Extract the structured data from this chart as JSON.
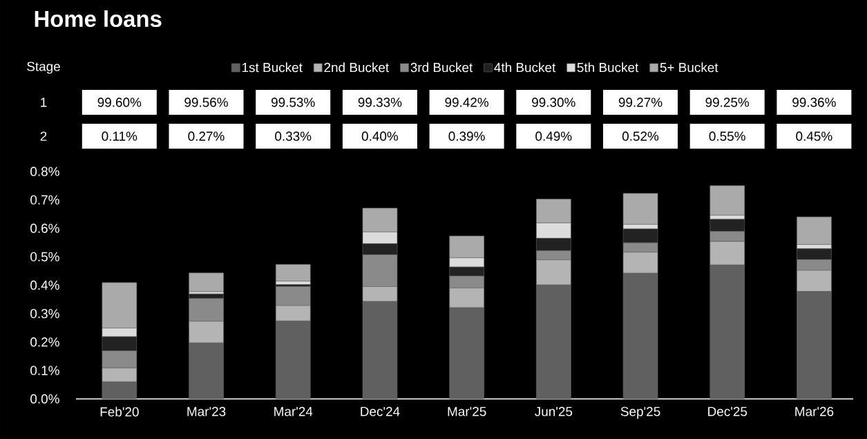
{
  "chart_data": {
    "type": "bar",
    "title": "Home loans",
    "stacked": true,
    "legend": "top",
    "categories": [
      "Feb'20",
      "Mar'23",
      "Mar'24",
      "Dec'24",
      "Mar'25",
      "Jun'25",
      "Sep'25",
      "Dec'25",
      "Mar'26"
    ],
    "series": [
      {
        "name": "1st Bucket",
        "color": "#606060",
        "values": [
          0.06,
          0.197,
          0.274,
          0.343,
          0.321,
          0.401,
          0.442,
          0.471,
          0.378
        ]
      },
      {
        "name": "2nd Bucket",
        "color": "#b4b4b4",
        "values": [
          0.049,
          0.076,
          0.054,
          0.052,
          0.069,
          0.088,
          0.074,
          0.083,
          0.074
        ]
      },
      {
        "name": "3rd Bucket",
        "color": "#8a8a8a",
        "values": [
          0.06,
          0.08,
          0.067,
          0.112,
          0.042,
          0.032,
          0.033,
          0.035,
          0.038
        ]
      },
      {
        "name": "4th Bucket",
        "color": "#222222",
        "values": [
          0.05,
          0.016,
          0.007,
          0.039,
          0.032,
          0.044,
          0.049,
          0.043,
          0.038
        ]
      },
      {
        "name": "5th Bucket",
        "color": "#dcdcdc",
        "values": [
          0.03,
          0.008,
          0.012,
          0.041,
          0.032,
          0.054,
          0.016,
          0.014,
          0.015
        ]
      },
      {
        "name": "5+ Bucket",
        "color": "#aaaaaa",
        "values": [
          0.16,
          0.066,
          0.059,
          0.084,
          0.077,
          0.084,
          0.109,
          0.104,
          0.097
        ]
      }
    ],
    "ylim": [
      0,
      0.8
    ],
    "yticks": [
      {
        "value": 0,
        "label": "0.0%"
      },
      {
        "value": 0.1,
        "label": "0.1%"
      },
      {
        "value": 0.2,
        "label": "0.2%"
      },
      {
        "value": 0.3,
        "label": "0.3%"
      },
      {
        "value": 0.4,
        "label": "0.4%"
      },
      {
        "value": 0.5,
        "label": "0.5%"
      },
      {
        "value": 0.6,
        "label": "0.6%"
      },
      {
        "value": 0.7,
        "label": "0.7%"
      },
      {
        "value": 0.8,
        "label": "0.8%"
      }
    ],
    "annotations": [
      "Stage",
      "1",
      "2",
      "99.60%",
      "99.56%",
      "99.53%",
      "99.33%",
      "99.42%",
      "99.30%",
      "99.27%",
      "99.25%",
      "99.36%",
      "0.11%",
      "0.27%",
      "0.33%",
      "0.40%",
      "0.39%",
      "0.49%",
      "0.52%",
      "0.55%",
      "0.45%"
    ]
  }
}
